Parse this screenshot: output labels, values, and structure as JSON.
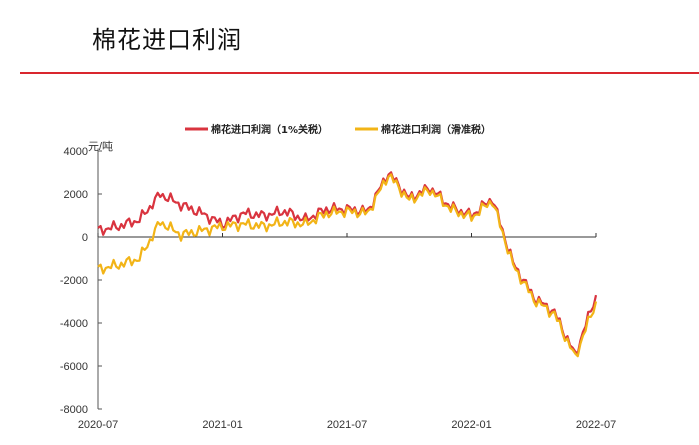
{
  "page": {
    "title": "棉花进口利润",
    "rule_color": "#d9262e"
  },
  "chart_data": {
    "type": "line",
    "title": "",
    "ylabel": "元/吨",
    "xlabel": "",
    "ylim": [
      -8000,
      4000
    ],
    "yticks": [
      "4000",
      "2000",
      "0",
      "-2000",
      "-4000",
      "-6000",
      "-8000"
    ],
    "xticks": [
      "2020-07",
      "2021-01",
      "2021-07",
      "2022-01",
      "2022-07"
    ],
    "legend_position": "top",
    "grid": false,
    "x": [
      "2020-07",
      "2020-08",
      "2020-09",
      "2020-10",
      "2020-11",
      "2020-12",
      "2021-01",
      "2021-02",
      "2021-03",
      "2021-04",
      "2021-05",
      "2021-06",
      "2021-07",
      "2021-08",
      "2021-09",
      "2021-10",
      "2021-11",
      "2021-12",
      "2022-01",
      "2022-02",
      "2022-03",
      "2022-04",
      "2022-05",
      "2022-06",
      "2022-07"
    ],
    "series": [
      {
        "name": "棉花进口利润（1%关税）",
        "color": "#d9343f",
        "values": [
          300,
          500,
          800,
          2000,
          1500,
          1100,
          600,
          1100,
          1000,
          1200,
          800,
          1300,
          1300,
          1200,
          3000,
          1800,
          2300,
          1400,
          1000,
          1800,
          -1200,
          -2800,
          -3500,
          -5500,
          -2700
        ]
      },
      {
        "name": "棉花进口利润（滑准税）",
        "color": "#f2b417",
        "values": [
          -1500,
          -1300,
          -1000,
          700,
          100,
          300,
          500,
          600,
          500,
          700,
          600,
          1100,
          1200,
          1100,
          2900,
          1700,
          2200,
          1300,
          900,
          1700,
          -1300,
          -2900,
          -3600,
          -5600,
          -3000
        ]
      }
    ]
  },
  "legend": {
    "items": [
      {
        "label": "棉花进口利润（1%关税）",
        "color": "#d9343f"
      },
      {
        "label": "棉花进口利润（滑准税）",
        "color": "#f2b417"
      }
    ]
  }
}
